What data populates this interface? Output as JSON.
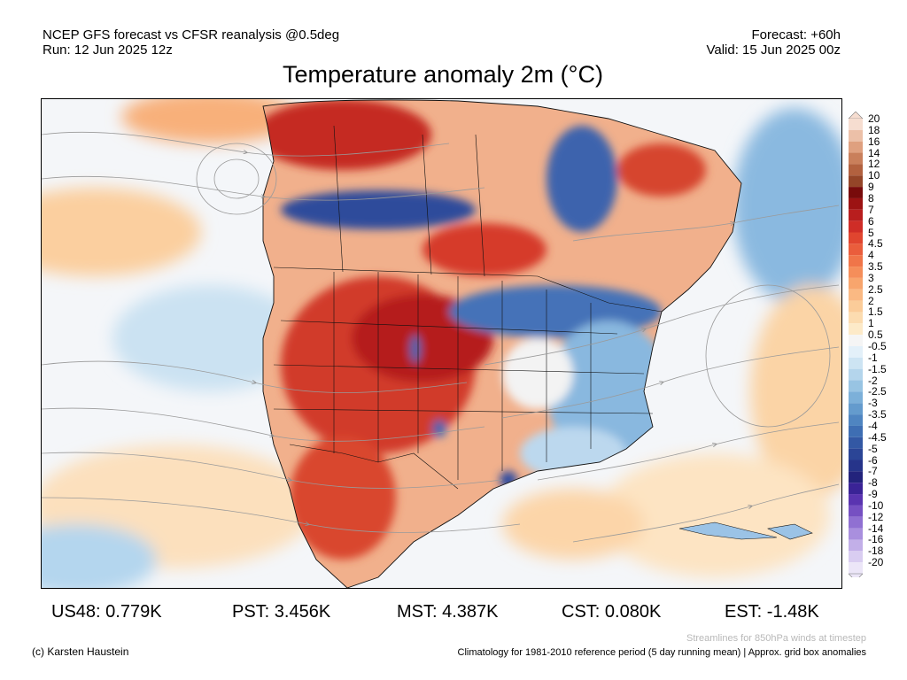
{
  "header": {
    "left_line1": "NCEP GFS forecast vs CFSR reanalysis @0.5deg",
    "left_line2": "Run: 12 Jun 2025 12z",
    "right_line1": "Forecast: +60h",
    "right_line2": "Valid: 15 Jun 2025 00z"
  },
  "title": "Temperature anomaly 2m (°C)",
  "legend": {
    "levels": [
      {
        "label": "20",
        "color": "#f6ddd0"
      },
      {
        "label": "18",
        "color": "#ecc0a8"
      },
      {
        "label": "16",
        "color": "#dfa07f"
      },
      {
        "label": "14",
        "color": "#c97f5b"
      },
      {
        "label": "12",
        "color": "#b2613f"
      },
      {
        "label": "10",
        "color": "#944528"
      },
      {
        "label": "9",
        "color": "#780b0b"
      },
      {
        "label": "8",
        "color": "#9c1313"
      },
      {
        "label": "7",
        "color": "#b81e1e"
      },
      {
        "label": "6",
        "color": "#cf2d27"
      },
      {
        "label": "5",
        "color": "#e0452f"
      },
      {
        "label": "4.5",
        "color": "#ea5d3c"
      },
      {
        "label": "4",
        "color": "#f07549"
      },
      {
        "label": "3.5",
        "color": "#f58e5a"
      },
      {
        "label": "3",
        "color": "#f8a56d"
      },
      {
        "label": "2.5",
        "color": "#fab983"
      },
      {
        "label": "2",
        "color": "#fbcc99"
      },
      {
        "label": "1.5",
        "color": "#fcdcb0"
      },
      {
        "label": "1",
        "color": "#fdeac8"
      },
      {
        "label": "0.5",
        "color": "#f5f5f5"
      },
      {
        "label": "-0.5",
        "color": "#e3f0f9"
      },
      {
        "label": "-1",
        "color": "#cde4f3"
      },
      {
        "label": "-1.5",
        "color": "#b4d5ec"
      },
      {
        "label": "-2",
        "color": "#98c4e3"
      },
      {
        "label": "-2.5",
        "color": "#7cb0d9"
      },
      {
        "label": "-3",
        "color": "#649bcd"
      },
      {
        "label": "-3.5",
        "color": "#4f85c1"
      },
      {
        "label": "-4",
        "color": "#3e6eb3"
      },
      {
        "label": "-4.5",
        "color": "#3358a4"
      },
      {
        "label": "-5",
        "color": "#2b4596"
      },
      {
        "label": "-6",
        "color": "#26348a"
      },
      {
        "label": "-7",
        "color": "#23237c"
      },
      {
        "label": "-8",
        "color": "#3a2396"
      },
      {
        "label": "-9",
        "color": "#5a34b0"
      },
      {
        "label": "-10",
        "color": "#7650c2"
      },
      {
        "label": "-12",
        "color": "#9070d2"
      },
      {
        "label": "-14",
        "color": "#a98fde"
      },
      {
        "label": "-16",
        "color": "#c2afe8"
      },
      {
        "label": "-18",
        "color": "#d9cdf1"
      },
      {
        "label": "-20",
        "color": "#ece6f8"
      }
    ]
  },
  "stats": {
    "us48": "US48: 0.779K",
    "pst": "PST: 3.456K",
    "mst": "MST: 4.387K",
    "cst": "CST: 0.080K",
    "est": "EST: -1.48K"
  },
  "footer": {
    "credit": "(c) Karsten Haustein",
    "streamlines_note": "Streamlines for 850hPa winds at timestep",
    "climatology_note": "Climatology for 1981-2010 reference period (5 day running mean) | Approx. grid box anomalies"
  }
}
